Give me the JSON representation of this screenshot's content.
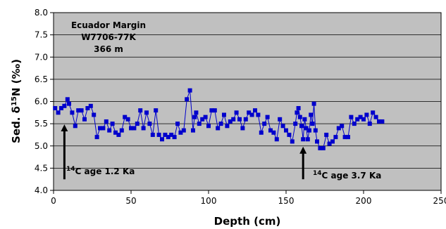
{
  "chart_data": {
    "type": "line",
    "xlabel": "Depth (cm)",
    "ylabel_parts": [
      "Sed. δ",
      "15",
      "N (‰)"
    ],
    "xlim": [
      0,
      250
    ],
    "ylim": [
      4.0,
      8.0
    ],
    "x_ticks": [
      "0",
      "50",
      "100",
      "150",
      "200",
      "250"
    ],
    "y_ticks": [
      "4.0",
      "4.5",
      "5.0",
      "5.5",
      "6.0",
      "6.5",
      "7.0",
      "7.5",
      "8.0"
    ],
    "grid": "horizontal",
    "plot_background": "#c0c0c0",
    "series_color": "#0000cc",
    "marker": "square",
    "inset_label": [
      "Ecuador Margin",
      "W7706-77K",
      "366 m"
    ],
    "annotations": [
      {
        "superscript": "14",
        "text": "C age 1.2 Ka",
        "arrow_x": 7,
        "arrow_from_y": 4.25,
        "arrow_to_y": 5.5
      },
      {
        "superscript": "14",
        "text": "C age 3.7 Ka",
        "arrow_x": 161,
        "arrow_from_y": 4.25,
        "arrow_to_y": 5.0
      }
    ],
    "series": [
      {
        "x": [
          1,
          3,
          5,
          7,
          9,
          10,
          12,
          14,
          16,
          18,
          20,
          22,
          24,
          26,
          28,
          30,
          32,
          34,
          36,
          38,
          40,
          42,
          44,
          46,
          48,
          50,
          52,
          54,
          56,
          58,
          60,
          62,
          64,
          66,
          68,
          70,
          72,
          74,
          76,
          78,
          80,
          82,
          84,
          86,
          88,
          90,
          91,
          92,
          94,
          96,
          98,
          100,
          102,
          104,
          106,
          108,
          110,
          112,
          114,
          116,
          118,
          120,
          122,
          124,
          126,
          128,
          130,
          132,
          134,
          136,
          138,
          140,
          142,
          144,
          146,
          148,
          150,
          152,
          154,
          156,
          157,
          158,
          159,
          160,
          161,
          162,
          163,
          164,
          165,
          166,
          167,
          168,
          169,
          170,
          172,
          174,
          176,
          178,
          180,
          182,
          184,
          186,
          188,
          190,
          192,
          194,
          196,
          198,
          200,
          202,
          204,
          206,
          208,
          210,
          212
        ],
        "y": [
          5.85,
          5.75,
          5.85,
          5.9,
          6.05,
          5.95,
          5.75,
          5.45,
          5.8,
          5.8,
          5.6,
          5.85,
          5.9,
          5.7,
          5.2,
          5.4,
          5.4,
          5.55,
          5.35,
          5.5,
          5.3,
          5.25,
          5.35,
          5.65,
          5.6,
          5.4,
          5.4,
          5.5,
          5.8,
          5.4,
          5.75,
          5.5,
          5.25,
          5.8,
          5.25,
          5.15,
          5.25,
          5.2,
          5.25,
          5.2,
          5.5,
          5.3,
          5.35,
          6.05,
          6.25,
          5.35,
          5.65,
          5.75,
          5.5,
          5.6,
          5.65,
          5.45,
          5.8,
          5.8,
          5.4,
          5.5,
          5.7,
          5.45,
          5.55,
          5.6,
          5.75,
          5.6,
          5.4,
          5.6,
          5.75,
          5.7,
          5.8,
          5.7,
          5.3,
          5.5,
          5.65,
          5.35,
          5.3,
          5.15,
          5.6,
          5.45,
          5.35,
          5.25,
          5.1,
          5.5,
          5.75,
          5.85,
          5.65,
          5.45,
          5.15,
          5.6,
          5.4,
          5.15,
          5.35,
          5.7,
          5.5,
          5.95,
          5.35,
          5.1,
          4.95,
          4.95,
          5.25,
          5.05,
          5.1,
          5.2,
          5.4,
          5.45,
          5.2,
          5.2,
          5.65,
          5.5,
          5.6,
          5.65,
          5.6,
          5.7,
          5.5,
          5.75,
          5.65,
          5.55,
          5.55
        ]
      }
    ]
  }
}
